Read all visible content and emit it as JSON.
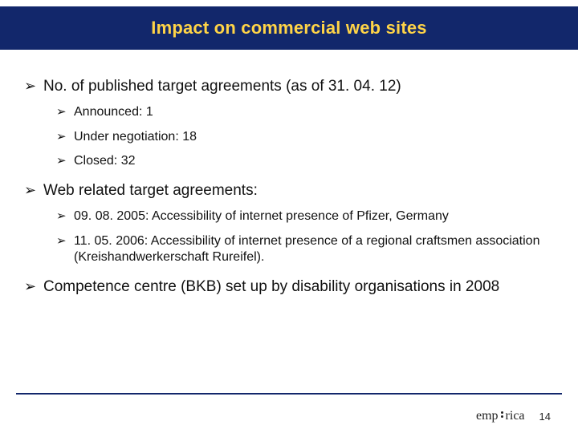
{
  "colors": {
    "band_bg": "#12276b",
    "title_color": "#ffd447",
    "text_color": "#111111",
    "background": "#ffffff",
    "footer_line": "#12276b"
  },
  "title": "Impact on commercial web sites",
  "bullets": {
    "b1": "No. of published target agreements  (as of 31. 04. 12)",
    "b1_sub": {
      "a": "Announced: 1",
      "b": "Under negotiation: 18",
      "c": "Closed: 32"
    },
    "b2": "Web related target agreements:",
    "b2_sub": {
      "a": "09. 08. 2005: Accessibility of internet presence of Pfizer, Germany",
      "b": "11. 05. 2006: Accessibility of internet presence of a regional craftsmen association (Kreishandwerkerschaft Rureifel)."
    },
    "b3": "Competence centre (BKB) set up by disability organisations in 2008"
  },
  "footer": {
    "logo_left": "emp",
    "logo_right": "rica",
    "page_number": "14"
  },
  "typography": {
    "title_fontsize": 22,
    "lvl1_fontsize": 19,
    "lvl2_fontsize": 16,
    "page_num_fontsize": 13
  },
  "bullet_glyph": "➢"
}
